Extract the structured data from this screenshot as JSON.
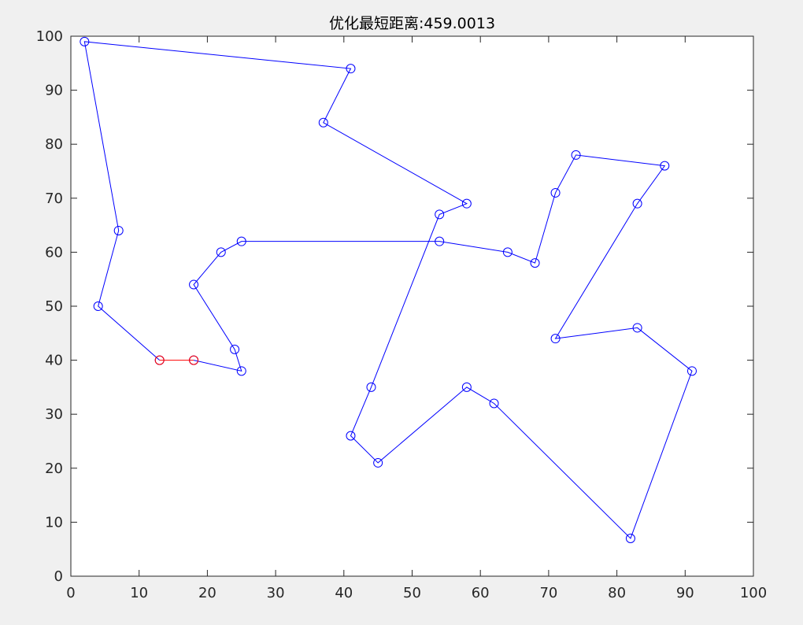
{
  "chart_data": {
    "type": "line",
    "title": "优化最短距离:459.0013",
    "xlabel": "",
    "ylabel": "",
    "xlim": [
      0,
      100
    ],
    "ylim": [
      0,
      100
    ],
    "xticks": [
      "0",
      "10",
      "20",
      "30",
      "40",
      "50",
      "60",
      "70",
      "80",
      "90",
      "100"
    ],
    "yticks": [
      "0",
      "10",
      "20",
      "30",
      "40",
      "50",
      "60",
      "70",
      "80",
      "90",
      "100"
    ],
    "grid": false,
    "colors": {
      "route": "#0000ff",
      "highlight": "#ff0000",
      "axes": "#262626",
      "plot_bg": "#ffffff"
    },
    "series": [
      {
        "style": "blue-route",
        "points": [
          [
            18,
            40
          ],
          [
            25,
            38
          ],
          [
            24,
            42
          ],
          [
            18,
            54
          ],
          [
            22,
            60
          ],
          [
            25,
            62
          ],
          [
            54,
            62
          ],
          [
            64,
            60
          ],
          [
            68,
            58
          ],
          [
            71,
            71
          ],
          [
            74,
            78
          ],
          [
            87,
            76
          ],
          [
            83,
            69
          ],
          [
            71,
            44
          ],
          [
            83,
            46
          ],
          [
            91,
            38
          ],
          [
            82,
            7
          ],
          [
            62,
            32
          ],
          [
            58,
            35
          ],
          [
            45,
            21
          ],
          [
            41,
            26
          ],
          [
            44,
            35
          ],
          [
            54,
            67
          ],
          [
            58,
            69
          ],
          [
            37,
            84
          ],
          [
            41,
            94
          ],
          [
            2,
            99
          ],
          [
            7,
            64
          ],
          [
            4,
            50
          ],
          [
            13,
            40
          ]
        ]
      },
      {
        "style": "red-segment",
        "points": [
          [
            13,
            40
          ],
          [
            18,
            40
          ]
        ]
      }
    ]
  }
}
